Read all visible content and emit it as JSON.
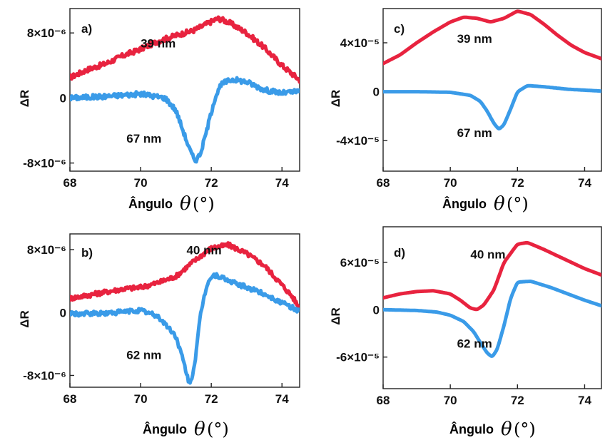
{
  "chart_data": [
    {
      "panel_label": "a)",
      "type": "line",
      "xlabel": "Ângulo",
      "xlabel_symbol": "θ",
      "xlabel_unit": "(°)",
      "ylabel": "ΔR",
      "xlim": [
        68,
        74.5
      ],
      "ylim": [
        -9,
        11
      ],
      "xticks": [
        68,
        70,
        72,
        74
      ],
      "yticks": [
        {
          "value": 8,
          "text": "8×10⁻⁶"
        },
        {
          "value": 0,
          "text": "0"
        },
        {
          "value": -8,
          "text": "-8×10⁻⁶"
        }
      ],
      "noisy": true,
      "series": [
        {
          "name": "39 nm",
          "color": "#e8233f",
          "x": [
            68,
            68.5,
            69,
            69.5,
            70,
            70.5,
            71,
            71.5,
            72,
            72.2,
            72.5,
            73,
            73.5,
            74,
            74.5
          ],
          "y": [
            2.5,
            3.5,
            4.2,
            5.2,
            6.0,
            7.0,
            7.7,
            8.3,
            9.4,
            9.8,
            9.3,
            8.0,
            6.2,
            4.0,
            2.2
          ]
        }
      ],
      "series_b": [
        {
          "name": "67 nm",
          "color": "#3a9be8",
          "x": [
            68,
            69,
            70,
            70.7,
            71,
            71.2,
            71.4,
            71.55,
            71.7,
            71.9,
            72.1,
            72.3,
            72.6,
            73,
            73.5,
            74,
            74.5
          ],
          "y": [
            0,
            0.2,
            0.5,
            0,
            -1.5,
            -4.0,
            -6.5,
            -7.8,
            -6.8,
            -3.5,
            0,
            1.8,
            2.3,
            2.0,
            1.0,
            0.6,
            0.8
          ]
        }
      ],
      "annotations": [
        {
          "text": "39 nm",
          "x": 70.0,
          "y": 6.2
        },
        {
          "text": "67 nm",
          "x": 69.6,
          "y": -5.5
        }
      ]
    },
    {
      "panel_label": "b)",
      "type": "line",
      "xlabel": "Ângulo",
      "xlabel_symbol": "θ",
      "xlabel_unit": "(°)",
      "ylabel": "ΔR",
      "xlim": [
        68,
        74.5
      ],
      "ylim": [
        -9.5,
        10
      ],
      "xticks": [
        68,
        70,
        72,
        74
      ],
      "yticks": [
        {
          "value": 8,
          "text": "8×10⁻⁶"
        },
        {
          "value": 0,
          "text": "0"
        },
        {
          "value": -8,
          "text": "-8×10⁻⁶"
        }
      ],
      "noisy": true,
      "series": [
        {
          "name": "40 nm",
          "color": "#e8233f",
          "x": [
            68,
            68.5,
            69,
            69.5,
            70,
            70.5,
            71,
            71.5,
            72,
            72.5,
            73,
            73.5,
            74,
            74.3,
            74.5
          ],
          "y": [
            1.8,
            2.2,
            2.6,
            3.0,
            3.2,
            3.8,
            4.6,
            6.5,
            8.2,
            8.6,
            7.5,
            6.0,
            3.5,
            2.0,
            0.5
          ]
        }
      ],
      "series_b": [
        {
          "name": "62 nm",
          "color": "#3a9be8",
          "x": [
            68,
            69,
            70,
            70.5,
            71,
            71.2,
            71.4,
            71.55,
            71.7,
            71.9,
            72.1,
            72.5,
            73,
            73.5,
            74,
            74.5
          ],
          "y": [
            -0.2,
            -0.1,
            0.3,
            -0.5,
            -3.0,
            -6.0,
            -9.5,
            -6.0,
            0,
            4.0,
            4.8,
            4.0,
            3.2,
            2.4,
            1.2,
            0.2
          ]
        }
      ],
      "annotations": [
        {
          "text": "40 nm",
          "x": 71.3,
          "y": 7.4
        },
        {
          "text": "62 nm",
          "x": 69.6,
          "y": -5.9
        }
      ]
    },
    {
      "panel_label": "c)",
      "type": "line",
      "xlabel": "Ângulo",
      "xlabel_symbol": "θ",
      "xlabel_unit": "(°)",
      "ylabel": "ΔR",
      "xlim": [
        68,
        74.5
      ],
      "ylim": [
        -6.5,
        6.8
      ],
      "xticks": [
        68,
        70,
        72,
        74
      ],
      "yticks": [
        {
          "value": 4,
          "text": "4×10⁻⁵"
        },
        {
          "value": 0,
          "text": "0"
        },
        {
          "value": -4,
          "text": "-4×10⁻⁵"
        }
      ],
      "noisy": false,
      "series": [
        {
          "name": "39 nm",
          "color": "#e8233f",
          "x": [
            68,
            68.5,
            69,
            69.5,
            70,
            70.4,
            70.8,
            71.2,
            71.6,
            72,
            72.4,
            72.8,
            73.2,
            73.6,
            74,
            74.5
          ],
          "y": [
            2.3,
            3.0,
            4.0,
            4.9,
            5.7,
            6.1,
            6.0,
            5.7,
            6.0,
            6.6,
            6.3,
            5.5,
            4.6,
            3.8,
            3.2,
            2.7
          ]
        }
      ],
      "series_b": [
        {
          "name": "67 nm",
          "color": "#3a9be8",
          "x": [
            68,
            69,
            70,
            70.6,
            70.9,
            71.1,
            71.3,
            71.45,
            71.6,
            71.8,
            72,
            72.3,
            72.8,
            73.5,
            74.5
          ],
          "y": [
            0,
            0,
            -0.05,
            -0.3,
            -0.8,
            -1.6,
            -2.6,
            -3.1,
            -2.7,
            -1.4,
            0,
            0.5,
            0.4,
            0.2,
            0.05
          ]
        }
      ],
      "annotations": [
        {
          "text": "39 nm",
          "x": 70.2,
          "y": 4.0
        },
        {
          "text": "67 nm",
          "x": 70.2,
          "y": -3.7
        }
      ]
    },
    {
      "panel_label": "d)",
      "type": "line",
      "xlabel": "Ângulo",
      "xlabel_symbol": "θ",
      "xlabel_unit": "(°)",
      "ylabel": "ΔR",
      "xlim": [
        68,
        74.5
      ],
      "ylim": [
        -10,
        10.5
      ],
      "xticks": [
        68,
        70,
        72,
        74
      ],
      "yticks": [
        {
          "value": 6,
          "text": "6×10⁻⁵"
        },
        {
          "value": 0,
          "text": "0"
        },
        {
          "value": -6,
          "text": "-6×10⁻⁵"
        }
      ],
      "noisy": false,
      "series": [
        {
          "name": "40 nm",
          "color": "#e8233f",
          "x": [
            68,
            68.5,
            69,
            69.5,
            70,
            70.3,
            70.6,
            70.8,
            71,
            71.3,
            71.6,
            72,
            72.3,
            72.8,
            73.4,
            74,
            74.5
          ],
          "y": [
            1.5,
            2.0,
            2.3,
            2.4,
            2.0,
            1.2,
            0.2,
            0.0,
            0.6,
            2.5,
            6.0,
            8.3,
            8.5,
            7.6,
            6.4,
            5.2,
            4.4
          ]
        }
      ],
      "series_b": [
        {
          "name": "62 nm",
          "color": "#3a9be8",
          "x": [
            68,
            69,
            69.6,
            70,
            70.4,
            70.7,
            70.9,
            71.1,
            71.25,
            71.4,
            71.6,
            71.8,
            72,
            72.4,
            73,
            74,
            74.5
          ],
          "y": [
            0,
            -0.1,
            -0.3,
            -0.7,
            -1.5,
            -2.8,
            -4.2,
            -5.5,
            -6.0,
            -5.0,
            -2.0,
            1.5,
            3.5,
            3.6,
            2.8,
            1.2,
            0.5
          ]
        }
      ],
      "annotations": [
        {
          "text": "40 nm",
          "x": 70.6,
          "y": 6.5
        },
        {
          "text": "62 nm",
          "x": 70.2,
          "y": -4.8
        }
      ]
    }
  ]
}
